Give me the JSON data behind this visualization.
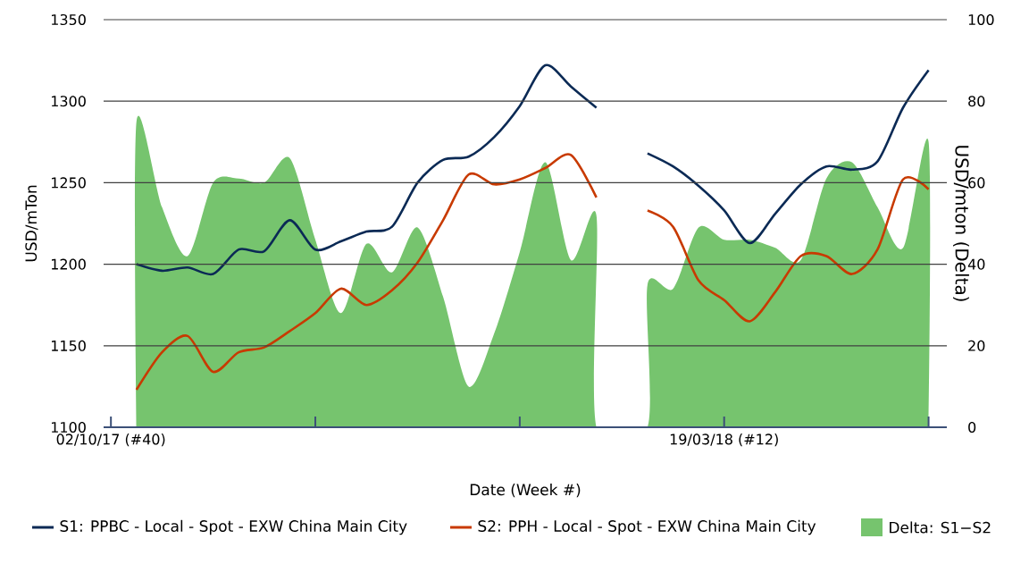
{
  "chart_data": {
    "type": "line",
    "xlabel": "Date (Week #)",
    "ylabel": "USD/mTon",
    "y2label": "USD/mton (Delta)",
    "x": [
      "2017-10-09",
      "2017-10-16",
      "2017-10-23",
      "2017-10-30",
      "2017-11-06",
      "2017-11-13",
      "2017-11-20",
      "2017-11-27",
      "2017-12-04",
      "2017-12-11",
      "2017-12-18",
      "2017-12-25",
      "2018-01-01",
      "2018-01-08",
      "2018-01-15",
      "2018-01-22",
      "2018-01-29",
      "2018-02-05",
      "2018-02-12",
      "2018-02-19",
      "2018-02-26",
      "2018-03-05",
      "2018-03-12",
      "2018-03-19",
      "2018-03-26",
      "2018-04-02",
      "2018-04-09",
      "2018-04-16",
      "2018-04-23",
      "2018-04-30",
      "2018-05-07",
      "2018-05-14"
    ],
    "xlim": [
      "2017-09-30",
      "2018-05-19"
    ],
    "xticks": [
      {
        "value": "2017-10-02",
        "label": "02/10/17 (#40)"
      },
      {
        "value": "2017-11-27",
        "label": null
      },
      {
        "value": "2018-01-22",
        "label": null
      },
      {
        "value": "2018-03-19",
        "label": "19/03/18 (#12)"
      },
      {
        "value": "2018-05-14",
        "label": null
      }
    ],
    "ylim": [
      1100,
      1350
    ],
    "yticks": [
      1100,
      1150,
      1200,
      1250,
      1300,
      1350
    ],
    "y2lim": [
      0,
      100
    ],
    "y2ticks": [
      0,
      20,
      40,
      60,
      80,
      100
    ],
    "grid": "y",
    "legend": "bottom",
    "series": [
      {
        "name": "Delta: S1−S2",
        "type": "area",
        "axis": "y2",
        "color": "#76c46e",
        "values": [
          75,
          54,
          42,
          60,
          61,
          60,
          66,
          46,
          28,
          45,
          38,
          49,
          32,
          10,
          23,
          43,
          65,
          41,
          52,
          null,
          35,
          34,
          49,
          46,
          46,
          44,
          41,
          61,
          65,
          54,
          44,
          70
        ]
      },
      {
        "name": "S1: PPBC - Local - Spot - EXW China Main City",
        "color": "#0b2a55",
        "values": [
          1200,
          1196,
          1198,
          1194,
          1209,
          1208,
          1227,
          1209,
          1214,
          1220,
          1223,
          1250,
          1264,
          1266,
          1278,
          1297,
          1322,
          1309,
          1296,
          null,
          1268,
          1260,
          1248,
          1233,
          1213,
          1231,
          1249,
          1260,
          1258,
          1263,
          1296,
          1319
        ]
      },
      {
        "name": "S2: PPH - Local - Spot - EXW China Main City",
        "color": "#c83a00",
        "values": [
          1123,
          1146,
          1156,
          1134,
          1146,
          1149,
          1159,
          1170,
          1185,
          1175,
          1184,
          1201,
          1227,
          1255,
          1249,
          1252,
          1259,
          1267,
          1241,
          null,
          1233,
          1223,
          1190,
          1178,
          1165,
          1183,
          1205,
          1205,
          1194,
          1209,
          1252,
          1246
        ]
      }
    ]
  }
}
